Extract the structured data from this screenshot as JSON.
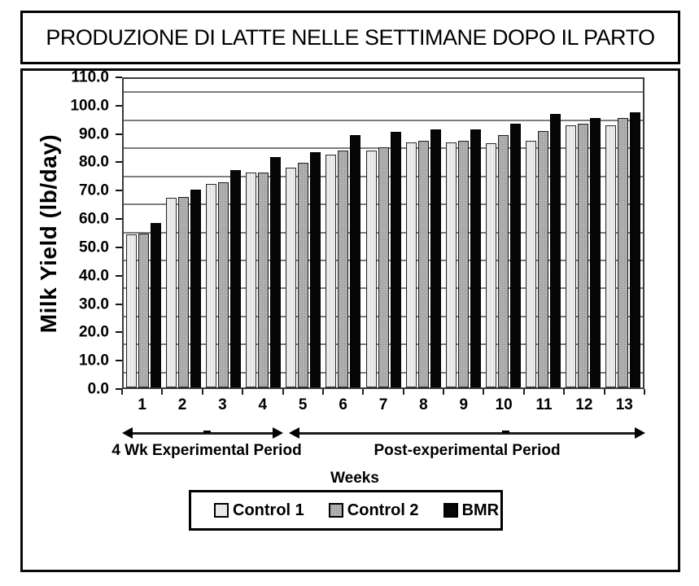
{
  "chart_data": {
    "type": "bar",
    "title": "PRODUZIONE DI LATTE NELLE SETTIMANE DOPO IL PARTO",
    "xlabel": "Weeks",
    "ylabel": "Milk Yield (lb/day)",
    "ylim": [
      0,
      110
    ],
    "y_tick_labels": [
      "0.0",
      "10.0",
      "20.0",
      "30.0",
      "40.0",
      "50.0",
      "60.0",
      "70.0",
      "80.0",
      "90.0",
      "100.0",
      "110.0"
    ],
    "gridlines_at": [
      5,
      15,
      25,
      35,
      45,
      55,
      65,
      75,
      85,
      95,
      105
    ],
    "grid": "horizontal",
    "categories": [
      "1",
      "2",
      "3",
      "4",
      "5",
      "6",
      "7",
      "8",
      "9",
      "10",
      "11",
      "12",
      "13"
    ],
    "series": [
      {
        "name": "Control 1",
        "color": "#ececec",
        "values": [
          54.5,
          67.5,
          72.5,
          76.5,
          78.5,
          83.0,
          84.5,
          87.5,
          87.5,
          87.0,
          88.0,
          93.5,
          93.5
        ]
      },
      {
        "name": "Control 2",
        "color": "#b2b2b2",
        "values": [
          55.0,
          68.0,
          73.0,
          76.5,
          80.0,
          84.5,
          85.5,
          88.0,
          88.0,
          90.0,
          91.5,
          94.0,
          96.0
        ]
      },
      {
        "name": "BMR",
        "color": "#060606",
        "values": [
          58.5,
          70.5,
          77.5,
          82.0,
          84.0,
          90.0,
          91.0,
          92.0,
          92.0,
          94.0,
          97.5,
          96.0,
          98.0
        ]
      }
    ],
    "legend_position": "bottom",
    "annotations": [
      {
        "label": "4 Wk Experimental Period",
        "span_weeks": "1-4"
      },
      {
        "label": "Post-experimental Period",
        "span_weeks": "5-13"
      }
    ]
  }
}
